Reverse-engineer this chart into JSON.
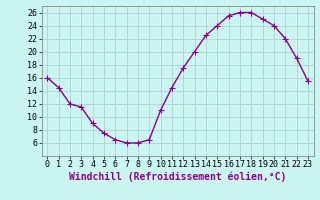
{
  "hours": [
    0,
    1,
    2,
    3,
    4,
    5,
    6,
    7,
    8,
    9,
    10,
    11,
    12,
    13,
    14,
    15,
    16,
    17,
    18,
    19,
    20,
    21,
    22,
    23
  ],
  "values": [
    16,
    14.5,
    12,
    11.5,
    9,
    7.5,
    6.5,
    6,
    6,
    6.5,
    11,
    14.5,
    17.5,
    20,
    22.5,
    24,
    25.5,
    26,
    26,
    25,
    24,
    22,
    19,
    15.5
  ],
  "line_color": "#8B008B",
  "marker": "+",
  "background_color": "#caf5f0",
  "grid_color": "#aacccc",
  "ylim": [
    4,
    27
  ],
  "yticks": [
    6,
    8,
    10,
    12,
    14,
    16,
    18,
    20,
    22,
    24,
    26
  ],
  "xticks": [
    0,
    1,
    2,
    3,
    4,
    5,
    6,
    7,
    8,
    9,
    10,
    11,
    12,
    13,
    14,
    15,
    16,
    17,
    18,
    19,
    20,
    21,
    22,
    23
  ],
  "xlabel": "Windchill (Refroidissement éolien,°C)",
  "xlabel_fontsize": 7,
  "tick_fontsize": 6,
  "line_width": 1.0,
  "marker_size": 4
}
